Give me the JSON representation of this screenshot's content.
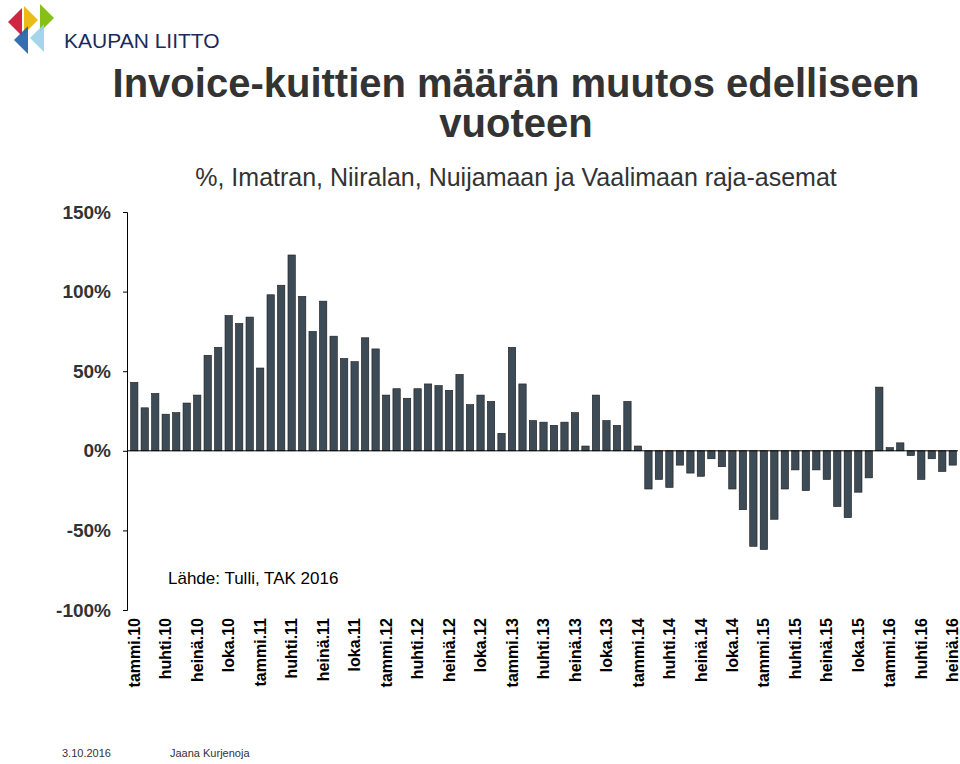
{
  "chart_data": {
    "type": "bar",
    "logo": "KAUPAN LIITTO",
    "title": "Invoice-kuittien määrän muutos edelliseen vuoteen",
    "subtitle": "%, Imatran, Niiralan, Nuijamaan ja Vaalimaan raja-asemat",
    "source": "Lähde: Tulli, TAK 2016",
    "date": "3.10.2016",
    "author": "Jaana Kurjenoja",
    "color": "#3d4b57",
    "categories": [
      "tammi.10",
      null,
      null,
      "huhti.10",
      null,
      null,
      "heinä.10",
      null,
      null,
      "loka.10",
      null,
      null,
      "tammi.11",
      null,
      null,
      "huhti.11",
      null,
      null,
      "heinä.11",
      null,
      null,
      "loka.11",
      null,
      null,
      "tammi.12",
      null,
      null,
      "huhti.12",
      null,
      null,
      "heinä.12",
      null,
      null,
      "loka.12",
      null,
      null,
      "tammi.13",
      null,
      null,
      "huhti.13",
      null,
      null,
      "heinä.13",
      null,
      null,
      "loka.13",
      null,
      null,
      "tammi.14",
      null,
      null,
      "huhti.14",
      null,
      null,
      "heinä.14",
      null,
      null,
      "loka.14",
      null,
      null,
      "tammi.15",
      null,
      null,
      "huhti.15",
      null,
      null,
      "heinä.15",
      null,
      null,
      "loka.15",
      null,
      null,
      "tammi.16",
      null,
      null,
      "huhti.16",
      null,
      null,
      "heinä.16"
    ],
    "values": [
      43,
      27,
      36,
      23,
      24,
      30,
      35,
      60,
      65,
      85,
      80,
      84,
      52,
      98,
      104,
      123,
      97,
      75,
      94,
      72,
      58,
      56,
      71,
      64,
      35,
      39,
      33,
      39,
      42,
      41,
      38,
      48,
      29,
      35,
      31,
      11,
      65,
      42,
      19,
      18,
      16,
      18,
      24,
      3,
      35,
      19,
      16,
      31,
      3,
      -24,
      -18,
      -23,
      -9,
      -14,
      -16,
      -5,
      -10,
      -24,
      -37,
      -60,
      -62,
      -43,
      -24,
      -12,
      -25,
      -12,
      -18,
      -35,
      -42,
      -26,
      -17,
      40,
      2,
      5,
      -3,
      -18,
      -5,
      -13,
      -9
    ],
    "ylim": [
      -100,
      150
    ],
    "yticks": [
      {
        "value": -100,
        "label": "-100%"
      },
      {
        "value": -50,
        "label": "-50%"
      },
      {
        "value": 0,
        "label": "0%"
      },
      {
        "value": 50,
        "label": "50%"
      },
      {
        "value": 100,
        "label": "100%"
      },
      {
        "value": 150,
        "label": "150%"
      }
    ],
    "grid": false
  }
}
